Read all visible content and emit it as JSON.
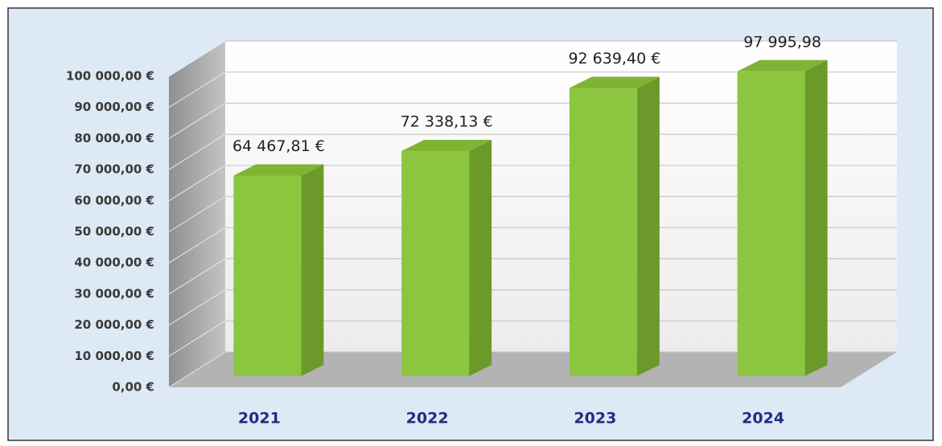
{
  "chart_data": {
    "type": "bar3d",
    "categories": [
      "2021",
      "2022",
      "2023",
      "2024"
    ],
    "values": [
      64467.81,
      72338.13,
      92639.4,
      97995.98
    ],
    "value_labels": [
      "64 467,81 €",
      "72 338,13 €",
      "92 639,40 €",
      "97 995,98"
    ],
    "color": "#8cc63e",
    "ylim": [
      0,
      100000
    ],
    "yticks": [
      {
        "value": 0,
        "label": "0,00 €"
      },
      {
        "value": 10000,
        "label": "10 000,00 €"
      },
      {
        "value": 20000,
        "label": "20 000,00 €"
      },
      {
        "value": 30000,
        "label": "30 000,00 €"
      },
      {
        "value": 40000,
        "label": "40 000,00 €"
      },
      {
        "value": 50000,
        "label": "50 000,00 €"
      },
      {
        "value": 60000,
        "label": "60 000,00 €"
      },
      {
        "value": 70000,
        "label": "70 000,00 €"
      },
      {
        "value": 80000,
        "label": "80 000,00 €"
      },
      {
        "value": 90000,
        "label": "90 000,00 €"
      },
      {
        "value": 100000,
        "label": "100 000,00 €"
      }
    ],
    "grid": true
  }
}
